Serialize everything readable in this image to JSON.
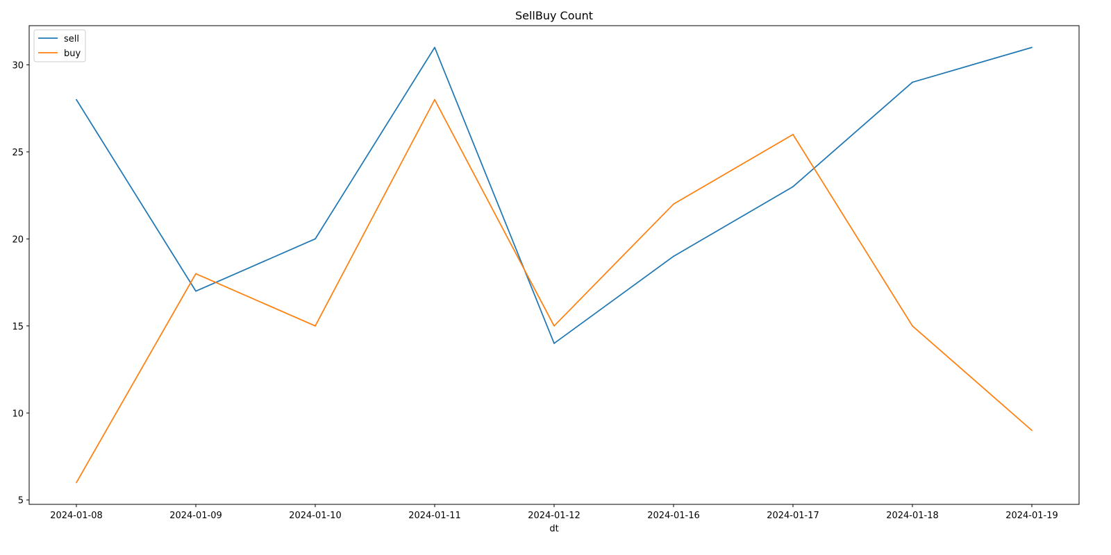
{
  "chart_data": {
    "type": "line",
    "title": "SellBuy Count",
    "xlabel": "dt",
    "ylabel": "",
    "categories": [
      "2024-01-08",
      "2024-01-09",
      "2024-01-10",
      "2024-01-11",
      "2024-01-12",
      "2024-01-16",
      "2024-01-17",
      "2024-01-18",
      "2024-01-19"
    ],
    "series": [
      {
        "name": "sell",
        "color": "#1f77b4",
        "values": [
          28,
          17,
          20,
          31,
          14,
          19,
          23,
          29,
          31
        ]
      },
      {
        "name": "buy",
        "color": "#ff7f0e",
        "values": [
          6,
          18,
          15,
          28,
          15,
          22,
          26,
          15,
          9
        ]
      }
    ],
    "ylim": [
      4.75,
      32.25
    ],
    "yticks": [
      5,
      10,
      15,
      20,
      25,
      30
    ],
    "grid": false,
    "legend": "top-left"
  }
}
